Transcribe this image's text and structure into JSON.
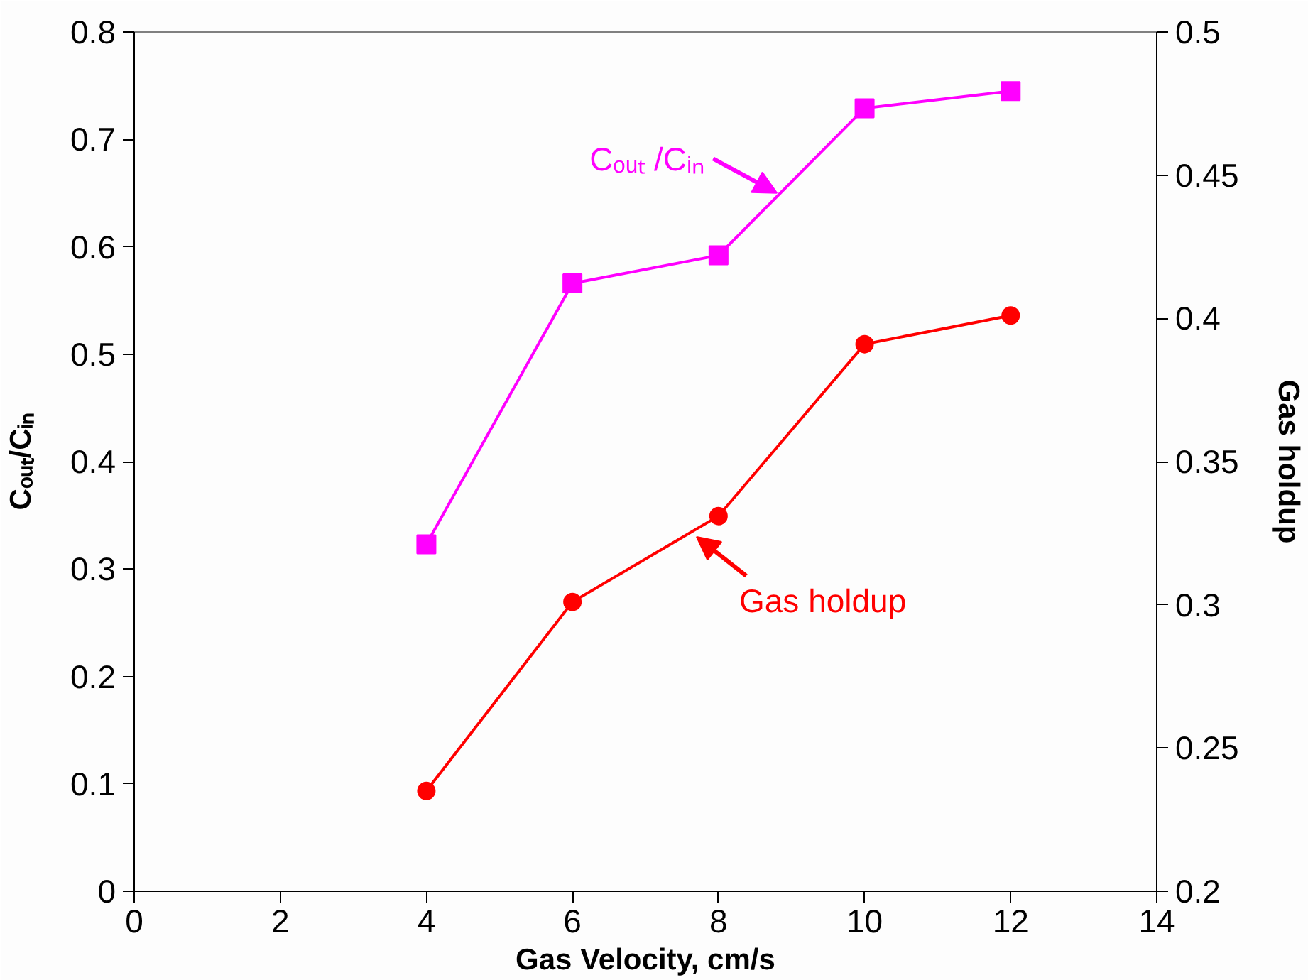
{
  "chart_data": {
    "type": "line",
    "xlabel": "Gas Velocity, cm/s",
    "ylabel": "Cₒᵤₜ/Cᵢₙ",
    "y2label": "Gas holdup",
    "x": [
      4,
      6,
      8,
      10,
      12
    ],
    "series": [
      {
        "color": "#ff00ff",
        "marker": "square",
        "values": [
          0.323,
          0.566,
          0.592,
          0.729,
          0.745
        ]
      },
      {
        "color": "#ff0000",
        "marker": "circle",
        "axis": "y2",
        "values": [
          0.235,
          0.301,
          0.331,
          0.391,
          0.401
        ]
      }
    ],
    "annotations": [
      {
        "text": "Cₒᵤₜ /Cᵢₙ",
        "x": 8.8,
        "y": 0.65
      },
      {
        "text": "Gas holdup",
        "x": 7.7,
        "y": 0.33
      }
    ],
    "xlim": [
      0,
      14
    ],
    "xticks": [
      0,
      2,
      4,
      6,
      8,
      10,
      12,
      14
    ],
    "ylim": [
      0,
      0.8
    ],
    "yticks": [
      0,
      0.1,
      0.2,
      0.3,
      0.4,
      0.5,
      0.6,
      0.7,
      0.8
    ],
    "y2lim": [
      0.2,
      0.5
    ],
    "y2ticks": [
      0.2,
      0.25,
      0.3,
      0.35,
      0.4,
      0.45,
      0.5
    ],
    "grid": false,
    "line_style": "solid"
  }
}
